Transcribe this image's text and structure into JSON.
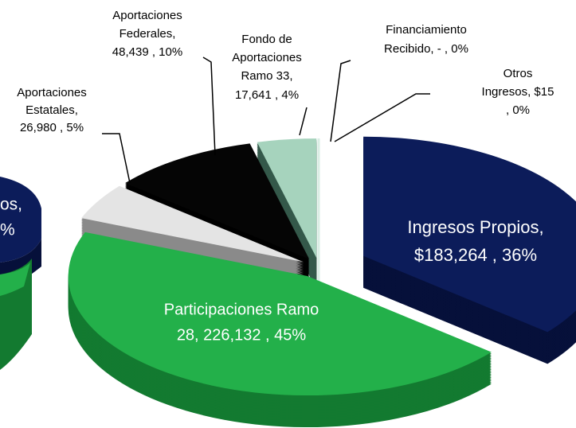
{
  "chart_data": {
    "type": "pie",
    "categories": [
      "Ingresos Propios",
      "Participaciones Ramo 28",
      "Aportaciones Estatales",
      "Aportaciones Federales",
      "Fondo de Aportaciones Ramo 33",
      "Financiamiento Recibido",
      "Otros Ingresos"
    ],
    "values": [
      183264,
      226132,
      26980,
      48439,
      17641,
      null,
      15
    ],
    "percents": [
      36,
      45,
      5,
      10,
      4,
      0,
      0
    ],
    "label_lines": [
      [
        "Ingresos Propios,",
        "$183,264 , 36%"
      ],
      [
        "Participaciones Ramo",
        "28,  226,132 , 45%"
      ],
      [
        "Aportaciones",
        "Estatales,",
        "26,980 , 5%"
      ],
      [
        "Aportaciones",
        "Federales,",
        "48,439 , 10%"
      ],
      [
        "Fondo de",
        "Aportaciones",
        "Ramo 33,",
        "17,641 , 4%"
      ],
      [
        "Financiamiento",
        "Recibido,  -  , 0%"
      ],
      [
        "Otros",
        "Ingresos,  $15",
        ", 0%"
      ]
    ],
    "colors": [
      "#0c1c5a",
      "#23b04a",
      "#e4e4e4",
      "#050505",
      "#a6d3bd",
      "#c8e6d8",
      "#d9eee4"
    ],
    "side_colors": [
      "#06103a",
      "#137a30",
      "#8a8a8a",
      "#000000",
      "#34594a",
      "#4a6b5c",
      "#5a7b6c"
    ],
    "annotations": [
      "os,",
      "%"
    ]
  }
}
